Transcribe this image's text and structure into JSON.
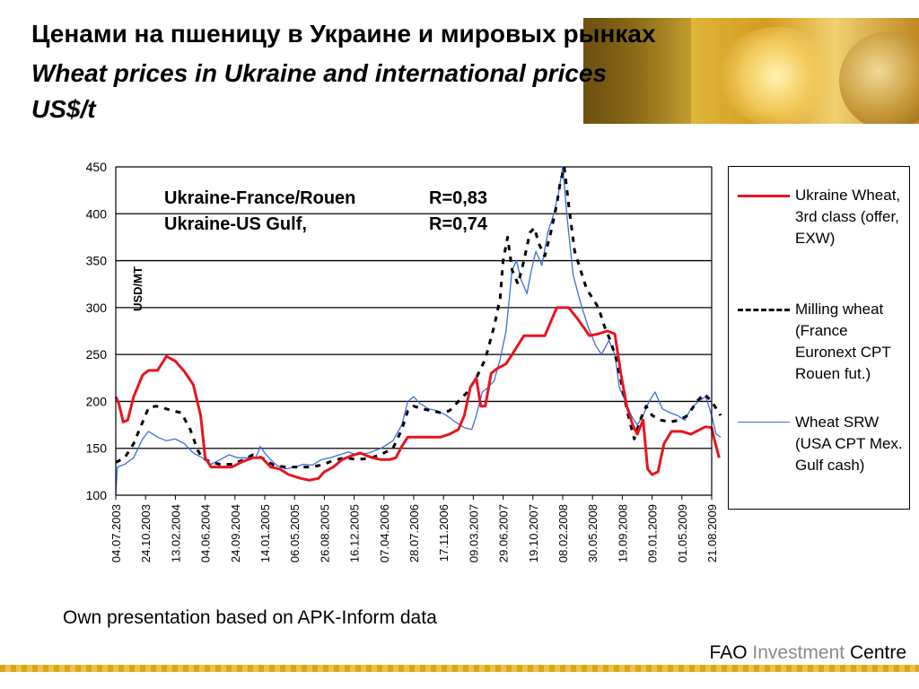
{
  "title_ru": "Ценами на пшеницу в Украине и мировых рынках",
  "title_en": "Wheat prices in Ukraine and international prices",
  "title_unit": "US$/t",
  "source_note": "Own presentation based on APK-Inform data",
  "footer": {
    "org": "FAO",
    "accent_word": "Investment",
    "tail": "Centre"
  },
  "chart_data": {
    "type": "line",
    "ylabel": "USD/MT",
    "ylim": [
      100,
      450
    ],
    "yticks": [
      100,
      150,
      200,
      250,
      300,
      350,
      400,
      450
    ],
    "grid": true,
    "legend_position": "right",
    "x_dates": [
      "04.07.2003",
      "24.10.2003",
      "13.02.2004",
      "04.06.2004",
      "24.09.2004",
      "14.01.2005",
      "06.05.2005",
      "26.08.2005",
      "16.12.2005",
      "07.04.2006",
      "28.07.2006",
      "17.11.2006",
      "09.03.2007",
      "29.06.2007",
      "19.10.2007",
      "08.02.2008",
      "30.05.2008",
      "19.09.2008",
      "09.01.2009",
      "01.05.2009",
      "21.08.2009"
    ],
    "annotations": [
      {
        "label": "Ukraine-France/Rouen",
        "value": "R=0,83"
      },
      {
        "label": "Ukraine-US Gulf,",
        "value": "R=0,74"
      }
    ],
    "series": [
      {
        "name": "Ukraine Wheat, 3rd class (offer, EXW)",
        "color": "#e8141e",
        "style": "solid",
        "points": [
          [
            0,
            205
          ],
          [
            0.1,
            198
          ],
          [
            0.25,
            178
          ],
          [
            0.4,
            180
          ],
          [
            0.6,
            205
          ],
          [
            0.9,
            228
          ],
          [
            1.1,
            233
          ],
          [
            1.4,
            233
          ],
          [
            1.7,
            248
          ],
          [
            2.0,
            243
          ],
          [
            2.3,
            232
          ],
          [
            2.6,
            218
          ],
          [
            2.85,
            185
          ],
          [
            3.0,
            140
          ],
          [
            3.2,
            130
          ],
          [
            3.5,
            130
          ],
          [
            3.9,
            130
          ],
          [
            4.2,
            135
          ],
          [
            4.6,
            140
          ],
          [
            4.9,
            140
          ],
          [
            5.2,
            130
          ],
          [
            5.5,
            128
          ],
          [
            5.8,
            122
          ],
          [
            6.2,
            118
          ],
          [
            6.5,
            116
          ],
          [
            6.8,
            118
          ],
          [
            7.0,
            125
          ],
          [
            7.3,
            130
          ],
          [
            7.6,
            138
          ],
          [
            7.9,
            142
          ],
          [
            8.2,
            145
          ],
          [
            8.6,
            140
          ],
          [
            8.9,
            138
          ],
          [
            9.2,
            138
          ],
          [
            9.4,
            140
          ],
          [
            9.6,
            152
          ],
          [
            9.8,
            162
          ],
          [
            10.1,
            162
          ],
          [
            10.5,
            162
          ],
          [
            10.9,
            162
          ],
          [
            11.2,
            165
          ],
          [
            11.5,
            170
          ],
          [
            11.7,
            185
          ],
          [
            11.9,
            215
          ],
          [
            12.1,
            225
          ],
          [
            12.25,
            195
          ],
          [
            12.4,
            195
          ],
          [
            12.6,
            230
          ],
          [
            12.8,
            235
          ],
          [
            13.1,
            240
          ],
          [
            13.4,
            255
          ],
          [
            13.7,
            270
          ],
          [
            14.1,
            270
          ],
          [
            14.4,
            270
          ],
          [
            14.8,
            300
          ],
          [
            15.2,
            300
          ],
          [
            15.5,
            288
          ],
          [
            15.9,
            270
          ],
          [
            16.2,
            272
          ],
          [
            16.5,
            275
          ],
          [
            16.75,
            272
          ],
          [
            16.95,
            230
          ],
          [
            17.15,
            195
          ],
          [
            17.35,
            175
          ],
          [
            17.5,
            165
          ],
          [
            17.7,
            180
          ],
          [
            17.85,
            128
          ],
          [
            18.0,
            122
          ],
          [
            18.2,
            125
          ],
          [
            18.4,
            155
          ],
          [
            18.65,
            168
          ],
          [
            19.0,
            168
          ],
          [
            19.3,
            165
          ],
          [
            19.6,
            170
          ],
          [
            19.8,
            173
          ],
          [
            20.0,
            172
          ],
          [
            20.1,
            158
          ],
          [
            20.25,
            140
          ]
        ]
      },
      {
        "name": "Milling wheat (France Euronext CPT Rouen fut.)",
        "color": "#000000",
        "style": "dashed",
        "points": [
          [
            0,
            135
          ],
          [
            0.3,
            140
          ],
          [
            0.6,
            155
          ],
          [
            0.9,
            178
          ],
          [
            1.1,
            193
          ],
          [
            1.35,
            195
          ],
          [
            1.6,
            193
          ],
          [
            1.9,
            190
          ],
          [
            2.2,
            188
          ],
          [
            2.5,
            170
          ],
          [
            2.75,
            148
          ],
          [
            2.9,
            140
          ],
          [
            3.2,
            135
          ],
          [
            3.5,
            133
          ],
          [
            3.9,
            133
          ],
          [
            4.3,
            138
          ],
          [
            4.6,
            143
          ],
          [
            4.9,
            140
          ],
          [
            5.3,
            132
          ],
          [
            5.7,
            130
          ],
          [
            6.1,
            130
          ],
          [
            6.5,
            130
          ],
          [
            6.9,
            132
          ],
          [
            7.3,
            137
          ],
          [
            7.7,
            140
          ],
          [
            8.1,
            138
          ],
          [
            8.6,
            140
          ],
          [
            9.0,
            145
          ],
          [
            9.3,
            150
          ],
          [
            9.6,
            170
          ],
          [
            9.8,
            190
          ],
          [
            10.0,
            195
          ],
          [
            10.3,
            192
          ],
          [
            10.6,
            190
          ],
          [
            10.9,
            188
          ],
          [
            11.2,
            190
          ],
          [
            11.5,
            200
          ],
          [
            11.8,
            210
          ],
          [
            12.1,
            225
          ],
          [
            12.4,
            245
          ],
          [
            12.7,
            280
          ],
          [
            12.9,
            310
          ],
          [
            13.0,
            350
          ],
          [
            13.15,
            375
          ],
          [
            13.3,
            340
          ],
          [
            13.5,
            325
          ],
          [
            13.7,
            350
          ],
          [
            13.9,
            380
          ],
          [
            14.05,
            385
          ],
          [
            14.2,
            368
          ],
          [
            14.4,
            355
          ],
          [
            14.6,
            380
          ],
          [
            14.8,
            410
          ],
          [
            14.9,
            430
          ],
          [
            15.05,
            450
          ],
          [
            15.2,
            410
          ],
          [
            15.4,
            360
          ],
          [
            15.6,
            340
          ],
          [
            15.8,
            320
          ],
          [
            16.0,
            310
          ],
          [
            16.2,
            300
          ],
          [
            16.4,
            280
          ],
          [
            16.6,
            265
          ],
          [
            16.8,
            245
          ],
          [
            17.0,
            215
          ],
          [
            17.2,
            185
          ],
          [
            17.4,
            160
          ],
          [
            17.6,
            180
          ],
          [
            17.8,
            195
          ],
          [
            18.0,
            185
          ],
          [
            18.3,
            180
          ],
          [
            18.6,
            178
          ],
          [
            18.9,
            180
          ],
          [
            19.2,
            185
          ],
          [
            19.5,
            200
          ],
          [
            19.75,
            208
          ],
          [
            20.0,
            200
          ],
          [
            20.3,
            185
          ]
        ]
      },
      {
        "name": "Wheat SRW (USA CPT Mex. Gulf cash)",
        "color": "#3c6fe0",
        "style": "solid",
        "points": [
          [
            0,
            100
          ],
          [
            0.05,
            130
          ],
          [
            0.3,
            133
          ],
          [
            0.6,
            140
          ],
          [
            0.9,
            160
          ],
          [
            1.1,
            168
          ],
          [
            1.4,
            162
          ],
          [
            1.7,
            158
          ],
          [
            2.0,
            160
          ],
          [
            2.3,
            155
          ],
          [
            2.6,
            145
          ],
          [
            2.9,
            140
          ],
          [
            3.2,
            133
          ],
          [
            3.5,
            138
          ],
          [
            3.8,
            143
          ],
          [
            4.1,
            140
          ],
          [
            4.4,
            140
          ],
          [
            4.7,
            140
          ],
          [
            4.85,
            152
          ],
          [
            5.0,
            145
          ],
          [
            5.2,
            138
          ],
          [
            5.4,
            132
          ],
          [
            5.7,
            128
          ],
          [
            6.0,
            130
          ],
          [
            6.3,
            133
          ],
          [
            6.6,
            132
          ],
          [
            6.9,
            138
          ],
          [
            7.2,
            140
          ],
          [
            7.5,
            143
          ],
          [
            7.8,
            146
          ],
          [
            8.1,
            143
          ],
          [
            8.5,
            145
          ],
          [
            8.9,
            150
          ],
          [
            9.3,
            158
          ],
          [
            9.6,
            175
          ],
          [
            9.8,
            200
          ],
          [
            10.0,
            205
          ],
          [
            10.2,
            198
          ],
          [
            10.5,
            192
          ],
          [
            10.8,
            190
          ],
          [
            11.1,
            185
          ],
          [
            11.4,
            178
          ],
          [
            11.7,
            172
          ],
          [
            11.95,
            170
          ],
          [
            12.1,
            185
          ],
          [
            12.3,
            210
          ],
          [
            12.5,
            215
          ],
          [
            12.7,
            222
          ],
          [
            12.9,
            245
          ],
          [
            13.1,
            275
          ],
          [
            13.3,
            340
          ],
          [
            13.45,
            350
          ],
          [
            13.6,
            330
          ],
          [
            13.8,
            315
          ],
          [
            13.95,
            340
          ],
          [
            14.1,
            360
          ],
          [
            14.3,
            345
          ],
          [
            14.5,
            380
          ],
          [
            14.7,
            400
          ],
          [
            14.85,
            420
          ],
          [
            15.0,
            450
          ],
          [
            15.15,
            395
          ],
          [
            15.35,
            335
          ],
          [
            15.6,
            305
          ],
          [
            15.85,
            280
          ],
          [
            16.1,
            260
          ],
          [
            16.3,
            250
          ],
          [
            16.55,
            265
          ],
          [
            16.75,
            250
          ],
          [
            16.9,
            215
          ],
          [
            17.1,
            200
          ],
          [
            17.3,
            185
          ],
          [
            17.5,
            175
          ],
          [
            17.7,
            185
          ],
          [
            17.9,
            200
          ],
          [
            18.1,
            210
          ],
          [
            18.35,
            192
          ],
          [
            18.6,
            188
          ],
          [
            18.85,
            185
          ],
          [
            19.1,
            180
          ],
          [
            19.3,
            192
          ],
          [
            19.55,
            200
          ],
          [
            19.8,
            205
          ],
          [
            20.0,
            185
          ],
          [
            20.15,
            165
          ],
          [
            20.3,
            162
          ]
        ]
      }
    ]
  }
}
